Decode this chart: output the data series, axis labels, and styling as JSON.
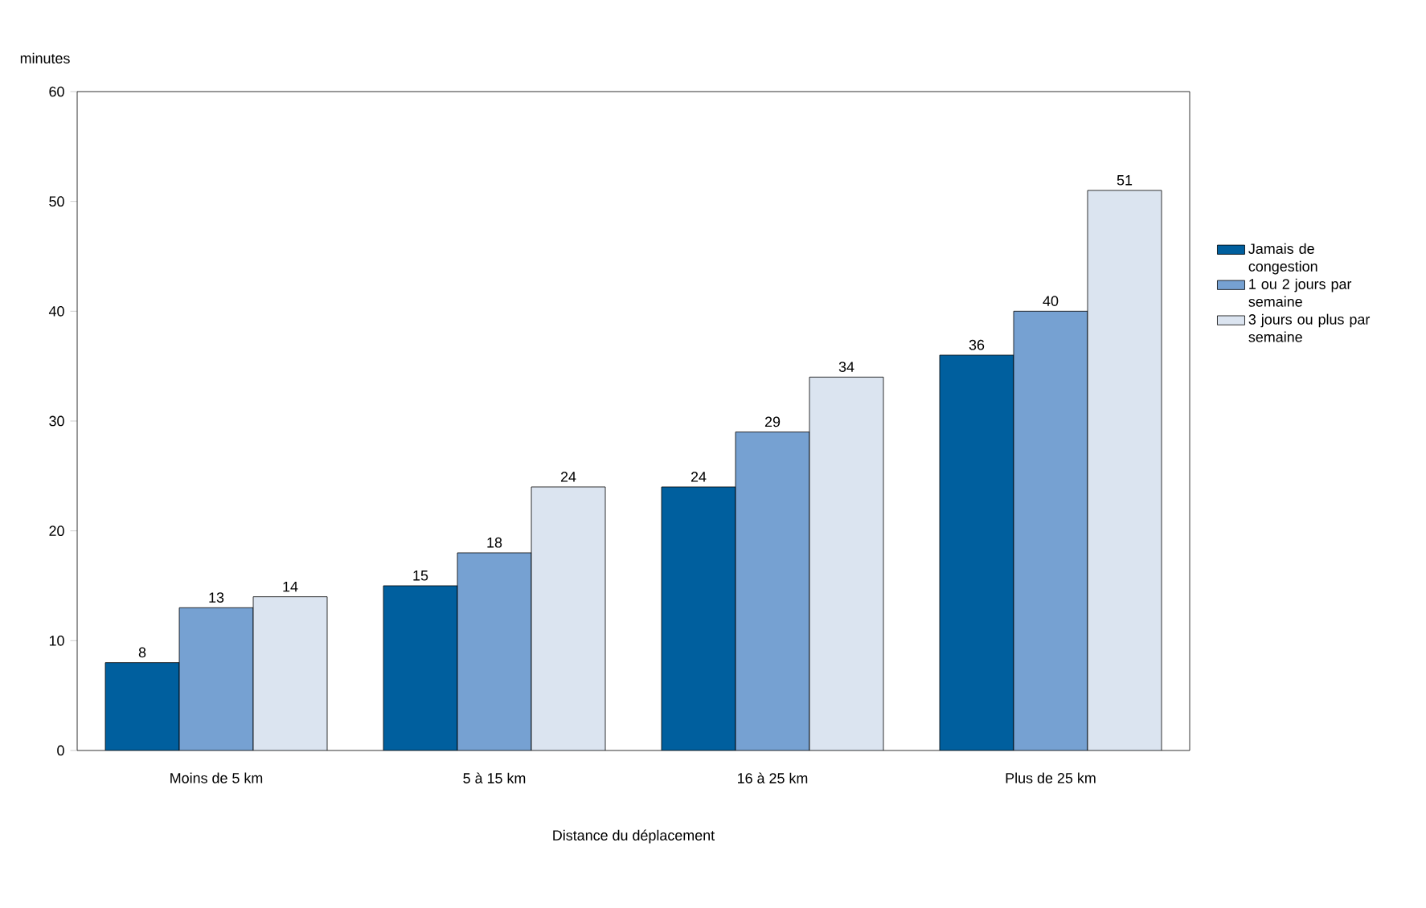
{
  "chart_data": {
    "type": "bar",
    "xlabel": "Distance du déplacement",
    "ylabel": "minutes",
    "categories": [
      "Moins de 5 km",
      "5 à 15 km",
      "16 à 25 km",
      "Plus de 25 km"
    ],
    "series": [
      {
        "name": "Jamais de congestion",
        "color": "#005f9e",
        "values": [
          8,
          15,
          24,
          36
        ]
      },
      {
        "name": "1 ou 2 jours par semaine",
        "color": "#76a1d2",
        "values": [
          13,
          18,
          29,
          40
        ]
      },
      {
        "name": "3 jours ou plus par semaine",
        "color": "#dbe4f0",
        "values": [
          14,
          24,
          34,
          51
        ]
      }
    ],
    "ylim": [
      0,
      60
    ],
    "yticks": [
      0,
      10,
      20,
      30,
      40,
      50,
      60
    ],
    "data_labels": true,
    "legend": "right",
    "grid": false
  }
}
